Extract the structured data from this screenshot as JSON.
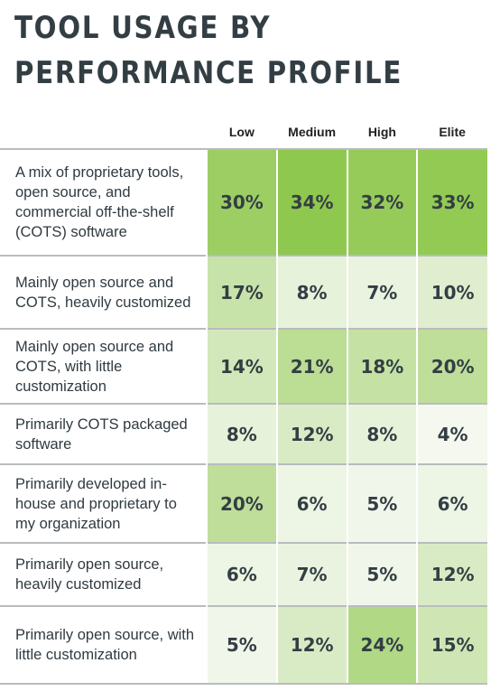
{
  "title_lines": [
    "TOOL USAGE BY",
    "PERFORMANCE PROFILE"
  ],
  "chart_data": {
    "type": "heatmap",
    "title": "TOOL USAGE BY PERFORMANCE PROFILE",
    "columns": [
      "Low",
      "Medium",
      "High",
      "Elite"
    ],
    "rows": [
      {
        "label": "A mix of proprietary tools, open source, and commercial off-the-shelf (COTS) software",
        "values": [
          30,
          34,
          32,
          33
        ]
      },
      {
        "label": "Mainly open source and COTS, heavily customized",
        "values": [
          17,
          8,
          7,
          10
        ]
      },
      {
        "label": "Mainly open source and COTS, with little customization",
        "values": [
          14,
          21,
          18,
          20
        ]
      },
      {
        "label": "Primarily COTS packaged software",
        "values": [
          8,
          12,
          8,
          4
        ]
      },
      {
        "label": "Primarily developed in-house and proprietary to my organization",
        "values": [
          20,
          6,
          5,
          6
        ]
      },
      {
        "label": "Primarily open source, heavily customized",
        "values": [
          6,
          7,
          5,
          12
        ]
      },
      {
        "label": "Primarily open source, with little customization",
        "values": [
          5,
          12,
          24,
          15
        ]
      }
    ],
    "value_suffix": "%",
    "color_scale": {
      "low": "#f4f8ef",
      "high": "#8fc84f"
    }
  }
}
